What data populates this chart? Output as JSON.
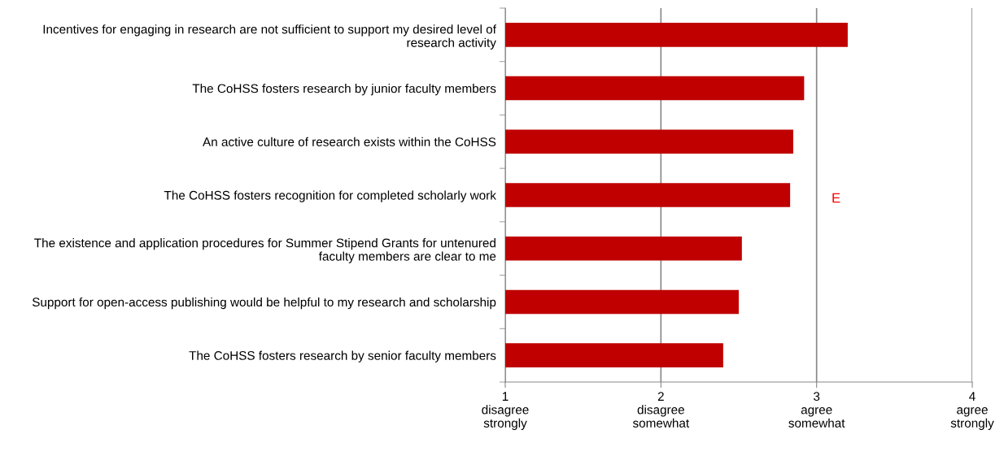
{
  "chart_data": {
    "type": "bar",
    "orientation": "horizontal",
    "categories": [
      "Incentives for engaging in research are not sufficient to support my desired level of research activity",
      "The CoHSS fosters research by junior faculty members",
      "An active culture of research exists within the CoHSS",
      "The CoHSS fosters recognition for completed scholarly work",
      "The existence and application procedures for Summer Stipend Grants for untenured faculty members are clear to me",
      "Support for open-access publishing would be helpful to my research and scholarship",
      "The CoHSS fosters research by senior faculty members"
    ],
    "values": [
      3.2,
      2.92,
      2.85,
      2.83,
      2.52,
      2.5,
      2.4
    ],
    "color": "#c00000",
    "xlim": [
      1,
      4
    ],
    "xticks": [
      {
        "value": 1,
        "label": "1\ndisagree\nstrongly"
      },
      {
        "value": 2,
        "label": "2\ndisagree\nsomewhat"
      },
      {
        "value": 3,
        "label": "3\nagree\nsomewhat"
      },
      {
        "value": 4,
        "label": "4\nagree\nstrongly"
      }
    ],
    "grid": "x",
    "annotations": [
      "E"
    ]
  }
}
